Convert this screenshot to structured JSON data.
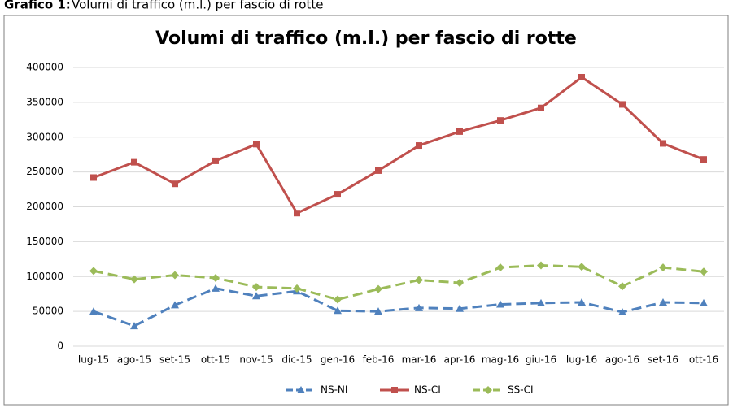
{
  "caption": {
    "label": "Grafico 1:",
    "text": "Volumi di traffico (m.l.) per fascio di rotte"
  },
  "chart_data": {
    "type": "line",
    "title": "Volumi di traffico (m.l.) per fascio di rotte",
    "categories": [
      "lug-15",
      "ago-15",
      "set-15",
      "ott-15",
      "nov-15",
      "dic-15",
      "gen-16",
      "feb-16",
      "mar-16",
      "apr-16",
      "mag-16",
      "giu-16",
      "lug-16",
      "ago-16",
      "set-16",
      "ott-16"
    ],
    "series": [
      {
        "name": "NS-NI",
        "color": "#4f81bd",
        "marker": "triangle",
        "dashed": true,
        "values": [
          50000,
          29000,
          59000,
          83000,
          72000,
          79000,
          51000,
          50000,
          55000,
          54000,
          60000,
          62000,
          63000,
          49000,
          63000,
          62000
        ]
      },
      {
        "name": "NS-CI",
        "color": "#c0504d",
        "marker": "square",
        "dashed": false,
        "values": [
          242000,
          264000,
          233000,
          266000,
          290000,
          191000,
          218000,
          252000,
          288000,
          308000,
          324000,
          342000,
          386000,
          347000,
          291000,
          268000
        ]
      },
      {
        "name": "SS-CI",
        "color": "#9bbb59",
        "marker": "diamond",
        "dashed": true,
        "values": [
          108000,
          96000,
          102000,
          98000,
          85000,
          83000,
          67000,
          82000,
          95000,
          91000,
          113000,
          116000,
          114000,
          86000,
          113000,
          107000
        ]
      }
    ],
    "ylim": [
      0,
      400000
    ],
    "yticks": [
      0,
      50000,
      100000,
      150000,
      200000,
      250000,
      300000,
      350000,
      400000
    ],
    "grid": true,
    "legend": "bottom"
  }
}
